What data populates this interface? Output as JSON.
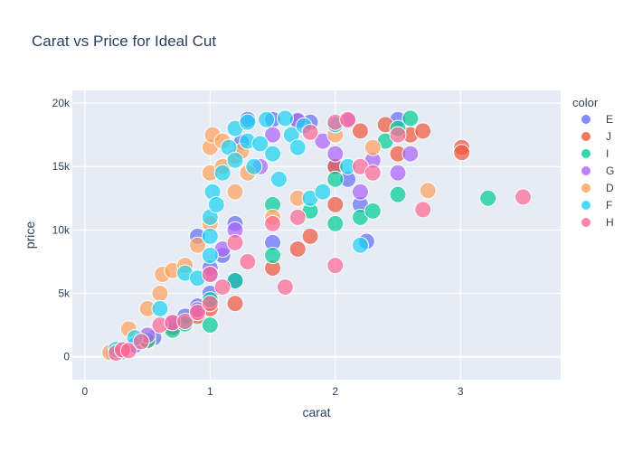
{
  "chart_data": {
    "type": "scatter",
    "title": "Carat vs Price for Ideal Cut",
    "xlabel": "carat",
    "ylabel": "price",
    "xlim": [
      -0.1,
      3.8
    ],
    "ylim": [
      -1800,
      21000
    ],
    "x_ticks": [
      {
        "value": 0,
        "label": "0"
      },
      {
        "value": 1,
        "label": "1"
      },
      {
        "value": 2,
        "label": "2"
      },
      {
        "value": 3,
        "label": "3"
      }
    ],
    "y_ticks": [
      {
        "value": 0,
        "label": "0"
      },
      {
        "value": 5000,
        "label": "5k"
      },
      {
        "value": 10000,
        "label": "10k"
      },
      {
        "value": 15000,
        "label": "15k"
      },
      {
        "value": 20000,
        "label": "20k"
      }
    ],
    "grid": true,
    "background": "#e5ecf6",
    "legend": {
      "title": "color",
      "placement": "right"
    },
    "series": [
      {
        "name": "E",
        "color": "#636efa",
        "points": [
          [
            0.23,
            330
          ],
          [
            0.3,
            500
          ],
          [
            0.4,
            900
          ],
          [
            0.55,
            1500
          ],
          [
            0.7,
            2500
          ],
          [
            0.8,
            3200
          ],
          [
            0.9,
            4000
          ],
          [
            0.9,
            9500
          ],
          [
            1.0,
            5000
          ],
          [
            1.0,
            7000
          ],
          [
            1.1,
            8000
          ],
          [
            1.2,
            6000
          ],
          [
            1.2,
            10500
          ],
          [
            1.25,
            16900
          ],
          [
            1.3,
            18700
          ],
          [
            1.5,
            9000
          ],
          [
            1.5,
            18700
          ],
          [
            1.7,
            18700
          ],
          [
            1.8,
            18500
          ],
          [
            2.0,
            15000
          ],
          [
            2.1,
            14000
          ],
          [
            2.2,
            12000
          ],
          [
            2.25,
            9100
          ],
          [
            2.5,
            18700
          ]
        ]
      },
      {
        "name": "J",
        "color": "#EF553B",
        "points": [
          [
            0.3,
            450
          ],
          [
            0.5,
            1200
          ],
          [
            0.7,
            2300
          ],
          [
            0.9,
            3200
          ],
          [
            1.0,
            3800
          ],
          [
            1.2,
            4200
          ],
          [
            1.5,
            7000
          ],
          [
            1.7,
            8500
          ],
          [
            1.8,
            9500
          ],
          [
            2.0,
            12000
          ],
          [
            2.0,
            15000
          ],
          [
            2.2,
            17800
          ],
          [
            2.4,
            18300
          ],
          [
            2.5,
            16000
          ],
          [
            2.6,
            17500
          ],
          [
            2.7,
            17800
          ],
          [
            3.01,
            16500
          ],
          [
            3.01,
            16100
          ]
        ]
      },
      {
        "name": "I",
        "color": "#00cc96",
        "points": [
          [
            0.3,
            400
          ],
          [
            0.5,
            1300
          ],
          [
            0.7,
            2100
          ],
          [
            0.8,
            2600
          ],
          [
            1.0,
            2500
          ],
          [
            1.0,
            4500
          ],
          [
            1.2,
            6000
          ],
          [
            1.5,
            8000
          ],
          [
            1.5,
            12000
          ],
          [
            1.8,
            11500
          ],
          [
            2.0,
            14000
          ],
          [
            2.0,
            10500
          ],
          [
            2.2,
            11000
          ],
          [
            2.3,
            11500
          ],
          [
            2.4,
            17000
          ],
          [
            2.5,
            12800
          ],
          [
            2.5,
            18000
          ],
          [
            2.6,
            18800
          ],
          [
            3.22,
            12500
          ]
        ]
      },
      {
        "name": "G",
        "color": "#ab63fa",
        "points": [
          [
            0.3,
            550
          ],
          [
            0.5,
            1700
          ],
          [
            0.7,
            2700
          ],
          [
            0.9,
            3700
          ],
          [
            1.0,
            6500
          ],
          [
            1.1,
            8500
          ],
          [
            1.2,
            10000
          ],
          [
            1.4,
            15000
          ],
          [
            1.5,
            17500
          ],
          [
            1.7,
            18600
          ],
          [
            1.9,
            17000
          ],
          [
            2.0,
            16000
          ],
          [
            2.1,
            18600
          ],
          [
            2.2,
            13000
          ],
          [
            2.3,
            15500
          ],
          [
            2.5,
            14500
          ],
          [
            2.6,
            16000
          ]
        ]
      },
      {
        "name": "D",
        "color": "#FFA15A",
        "points": [
          [
            0.2,
            350
          ],
          [
            0.35,
            2200
          ],
          [
            0.5,
            3800
          ],
          [
            0.6,
            5000
          ],
          [
            0.62,
            6500
          ],
          [
            0.7,
            6800
          ],
          [
            0.8,
            7200
          ],
          [
            0.9,
            8800
          ],
          [
            1.0,
            10500
          ],
          [
            1.0,
            14500
          ],
          [
            1.0,
            16500
          ],
          [
            1.02,
            17500
          ],
          [
            1.1,
            15000
          ],
          [
            1.1,
            17000
          ],
          [
            1.2,
            13000
          ],
          [
            1.2,
            15800
          ],
          [
            1.25,
            16200
          ],
          [
            1.3,
            14500
          ],
          [
            1.5,
            11000
          ],
          [
            1.7,
            12500
          ],
          [
            2.0,
            17500
          ],
          [
            2.3,
            16500
          ],
          [
            2.74,
            13100
          ]
        ]
      },
      {
        "name": "F",
        "color": "#19d3f3",
        "points": [
          [
            0.25,
            600
          ],
          [
            0.4,
            1500
          ],
          [
            0.6,
            3800
          ],
          [
            0.8,
            6600
          ],
          [
            0.9,
            6200
          ],
          [
            1.0,
            8000
          ],
          [
            1.0,
            9500
          ],
          [
            1.0,
            11000
          ],
          [
            1.02,
            13000
          ],
          [
            1.05,
            12000
          ],
          [
            1.1,
            14500
          ],
          [
            1.15,
            16500
          ],
          [
            1.2,
            15500
          ],
          [
            1.2,
            18000
          ],
          [
            1.3,
            17000
          ],
          [
            1.3,
            18500
          ],
          [
            1.35,
            15000
          ],
          [
            1.4,
            16800
          ],
          [
            1.45,
            18700
          ],
          [
            1.5,
            16000
          ],
          [
            1.55,
            14000
          ],
          [
            1.6,
            18800
          ],
          [
            1.65,
            17500
          ],
          [
            1.7,
            16500
          ],
          [
            1.75,
            18200
          ],
          [
            1.8,
            12500
          ],
          [
            1.9,
            13000
          ],
          [
            2.0,
            18300
          ],
          [
            2.1,
            15000
          ],
          [
            2.2,
            8800
          ]
        ]
      },
      {
        "name": "H",
        "color": "#FF6692",
        "points": [
          [
            0.25,
            300
          ],
          [
            0.3,
            550
          ],
          [
            0.35,
            500
          ],
          [
            0.45,
            1200
          ],
          [
            0.6,
            2500
          ],
          [
            0.7,
            2700
          ],
          [
            0.8,
            2800
          ],
          [
            0.9,
            3500
          ],
          [
            1.0,
            4200
          ],
          [
            1.0,
            6500
          ],
          [
            1.1,
            5500
          ],
          [
            1.2,
            9000
          ],
          [
            1.3,
            7500
          ],
          [
            1.5,
            10500
          ],
          [
            1.6,
            5500
          ],
          [
            1.7,
            11000
          ],
          [
            1.8,
            17700
          ],
          [
            2.0,
            7200
          ],
          [
            2.0,
            18500
          ],
          [
            2.1,
            18700
          ],
          [
            2.2,
            15000
          ],
          [
            2.3,
            14500
          ],
          [
            2.5,
            17500
          ],
          [
            2.7,
            11600
          ],
          [
            3.5,
            12600
          ]
        ]
      }
    ]
  }
}
